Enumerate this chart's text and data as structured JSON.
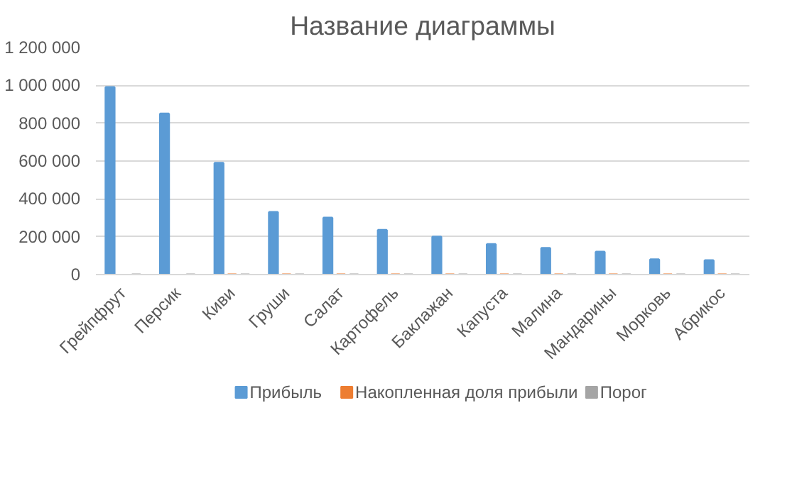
{
  "chart_data": {
    "type": "bar",
    "title": "Название диаграммы",
    "categories": [
      "Грейпфрут",
      "Персик",
      "Киви",
      "Груши",
      "Салат",
      "Картофель",
      "Баклажан",
      "Капуста",
      "Малина",
      "Мандарины",
      "Морковь",
      "Абрикос"
    ],
    "series": [
      {
        "name": "Прибыль",
        "color": "#5b9bd5",
        "values": [
          990000,
          850000,
          590000,
          330000,
          300000,
          235000,
          200000,
          160000,
          140000,
          120000,
          80000,
          75000
        ]
      },
      {
        "name": "Накопленная доля прибыли",
        "color": "#ed7d31",
        "values": [
          null,
          null,
          0,
          0,
          0,
          0,
          0,
          0,
          0,
          0,
          0,
          0
        ]
      },
      {
        "name": "Порог",
        "color": "#a5a5a5",
        "values": [
          0,
          0,
          0,
          0,
          0,
          0,
          0,
          0,
          0,
          0,
          0,
          0
        ]
      }
    ],
    "ylim": [
      0,
      1200000
    ],
    "yticks": [
      {
        "value": 0,
        "label": "0"
      },
      {
        "value": 200000,
        "label": "200 000"
      },
      {
        "value": 400000,
        "label": "400 000"
      },
      {
        "value": 600000,
        "label": "600 000"
      },
      {
        "value": 800000,
        "label": "800 000"
      },
      {
        "value": 1000000,
        "label": "1 000 000"
      },
      {
        "value": 1200000,
        "label": "1 200 000"
      }
    ],
    "grid": "y",
    "legend": "bottom"
  }
}
